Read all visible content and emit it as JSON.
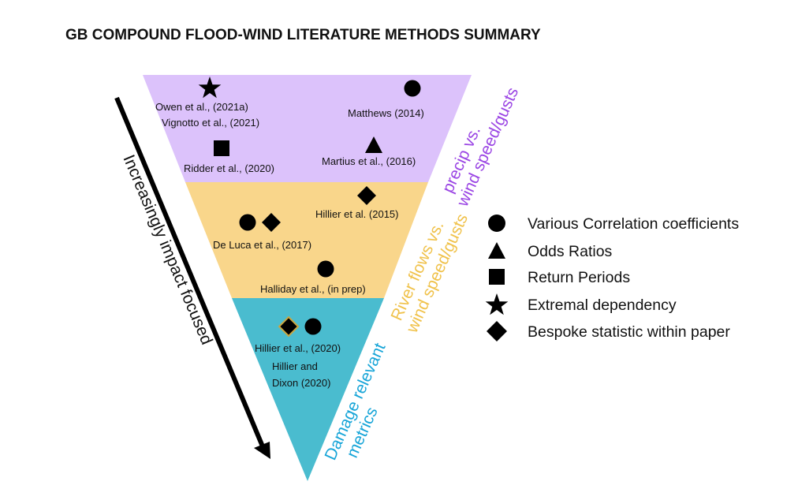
{
  "title": "GB COMPOUND FLOOD-WIND LITERATURE METHODS SUMMARY",
  "colors": {
    "top_band": "#dcc2fb",
    "middle_band": "#f9d68b",
    "bottom_band": "#4abccf",
    "top_label": "#9b46e4",
    "middle_label": "#f0c24b",
    "bottom_label": "#17a5d8",
    "diamond_outline": "#c9a742"
  },
  "arrow_label": "Increasingly impact focused",
  "band_labels": {
    "top": [
      "precip vs.",
      "wind speed/gusts"
    ],
    "middle": [
      "River flows vs.",
      "wind speed/gusts"
    ],
    "bottom": [
      "Damage relevant",
      "metrics"
    ]
  },
  "citations": {
    "owen": "Owen et al., (2021a)",
    "vignotto": "Vignotto et al., (2021)",
    "matthews": "Matthews (2014)",
    "ridder": "Ridder et al., (2020)",
    "martius": "Martius et al., (2016)",
    "hillier2015": "Hillier et al. (2015)",
    "deluca": "De Luca et al., (2017)",
    "halliday": "Halliday et al., (in prep)",
    "hillier2020": "Hillier et al., (2020)",
    "hillier_dixon_1": "Hillier and",
    "hillier_dixon_2": "Dixon (2020)"
  },
  "legend": [
    {
      "icon": "circle-icon",
      "label": "Various Correlation coefficients"
    },
    {
      "icon": "triangle-icon",
      "label": "Odds Ratios"
    },
    {
      "icon": "square-icon",
      "label": "Return Periods"
    },
    {
      "icon": "star-icon",
      "label": "Extremal dependency"
    },
    {
      "icon": "diamond-icon",
      "label": "Bespoke statistic within paper"
    }
  ]
}
